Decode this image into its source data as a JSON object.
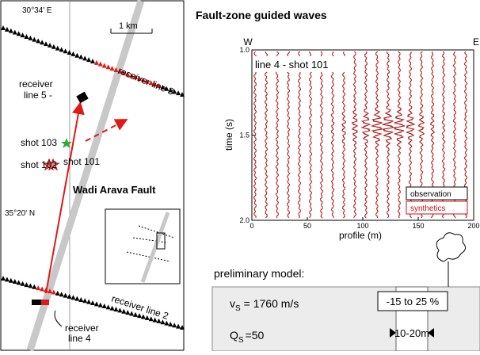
{
  "map": {
    "longitude": "30°34' E",
    "scale": "1 km",
    "receiver_line_3": "receiver line 3",
    "receiver_line_5": [
      "receiver",
      "line 5 -"
    ],
    "shot_103": "shot 103",
    "shot_102": "shot 102",
    "shot_101": "shot 101",
    "fault": "Wadi Arava Fault",
    "latitude": "35°20' N",
    "receiver_line_4": [
      "receiver",
      "line 4"
    ],
    "receiver_line_2": "receiver line 2"
  },
  "chart_data": {
    "type": "seismogram",
    "title": "Fault-zone guided waves",
    "left_label": "W",
    "right_label": "E",
    "annotation": "line 4 - shot 101",
    "xlabel": "profile (m)",
    "ylabel": "time (s)",
    "xlim": [
      0,
      200
    ],
    "ylim": [
      2.0,
      1.0
    ],
    "xticks": [
      0,
      50,
      100,
      150,
      200
    ],
    "yticks": [
      {
        "value": 1.0,
        "label": "1.0"
      },
      {
        "value": 1.5,
        "label": "1.5"
      },
      {
        "value": 2.0,
        "label": "2.0"
      }
    ],
    "x": [
      0,
      10,
      20,
      30,
      40,
      50,
      60,
      70,
      80,
      90,
      100,
      110,
      120,
      130,
      140,
      150,
      160,
      170,
      180,
      190
    ],
    "series": [
      {
        "name": "observation",
        "color": "#000000"
      },
      {
        "name": "synthetics",
        "color": "#d01010"
      }
    ]
  },
  "model": {
    "title": "preliminary model:",
    "vs": {
      "symbol": "v",
      "sub": "S",
      "value": "= 1760 m/s"
    },
    "qs": {
      "symbol": "Q",
      "sub": "S",
      "value": "=50"
    },
    "contrast": "-15 to 25 %",
    "width": "10-20m"
  }
}
